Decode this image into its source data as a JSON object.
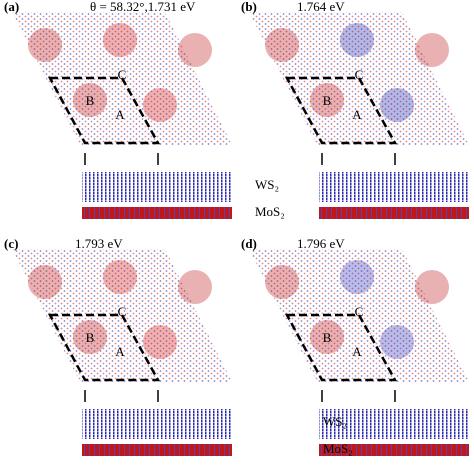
{
  "panels": [
    {
      "label": "(a)",
      "energy": "θ = 58.32°,1.731 eV",
      "sites": [
        "B",
        "A",
        "C"
      ],
      "layers": [
        "WS₂",
        "MoS₂"
      ]
    },
    {
      "label": "(b)",
      "energy": "1.764 eV",
      "sites": [
        "B",
        "A",
        "C"
      ]
    },
    {
      "label": "(c)",
      "energy": "1.793 eV",
      "sites": [
        "B",
        "A",
        "C"
      ]
    },
    {
      "label": "(d)",
      "energy": "1.796 eV",
      "sites": [
        "B",
        "A",
        "C"
      ],
      "layers": [
        "WS₂",
        "MoS₂"
      ]
    }
  ]
}
